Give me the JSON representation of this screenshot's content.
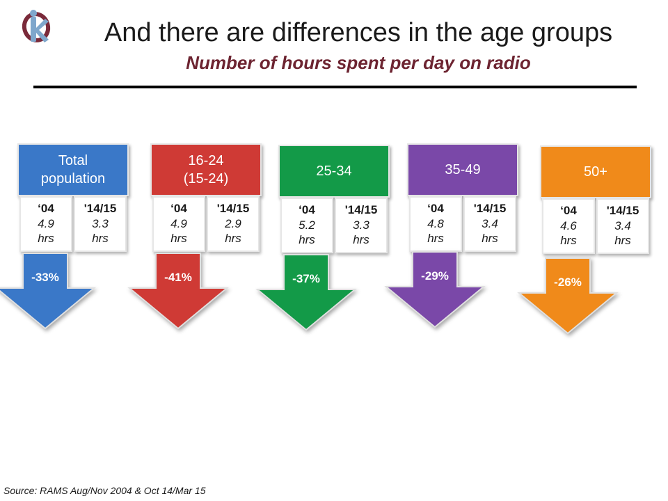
{
  "title": "And there are differences in the age groups",
  "subtitle": "Number of hours spent per day on radio",
  "source": "Source: RAMS  Aug/Nov 2004 & Oct 14/Mar 15",
  "colors": {
    "subtitle": "#6d2431"
  },
  "groups": [
    {
      "label": "Total\npopulation",
      "color": "#3a78c8",
      "col1": {
        "year": "‘04",
        "value": "4.9",
        "unit": "hrs"
      },
      "col2": {
        "year": "'14/15",
        "value": "3.3",
        "unit": "hrs"
      },
      "change": "-33%"
    },
    {
      "label": "16-24\n(15-24)",
      "color": "#cf3a35",
      "col1": {
        "year": "‘04",
        "value": "4.9",
        "unit": "hrs"
      },
      "col2": {
        "year": "'14/15",
        "value": "2.9",
        "unit": "hrs"
      },
      "change": "-41%"
    },
    {
      "label": "25-34",
      "color": "#139a48",
      "col1": {
        "year": "‘04",
        "value": "5.2",
        "unit": "hrs"
      },
      "col2": {
        "year": "'14/15",
        "value": "3.3",
        "unit": "hrs"
      },
      "change": "-37%"
    },
    {
      "label": "35-49",
      "color": "#7a48a8",
      "col1": {
        "year": "‘04",
        "value": "4.8",
        "unit": "hrs"
      },
      "col2": {
        "year": "'14/15",
        "value": "3.4",
        "unit": "hrs"
      },
      "change": "-29%"
    },
    {
      "label": "50+",
      "color": "#f08a1a",
      "col1": {
        "year": "‘04",
        "value": "4.6",
        "unit": "hrs"
      },
      "col2": {
        "year": "'14/15",
        "value": "3.4",
        "unit": "hrs"
      },
      "change": "-26%"
    }
  ]
}
